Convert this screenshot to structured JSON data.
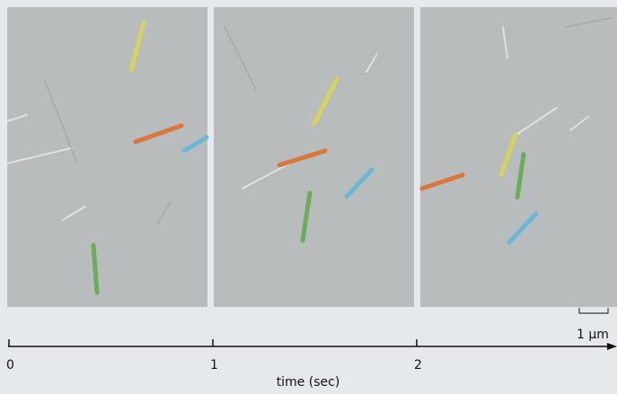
{
  "axis": {
    "ticks": [
      0,
      1,
      2
    ],
    "label": "time (sec)"
  },
  "scale_bar": "1 μm"
}
